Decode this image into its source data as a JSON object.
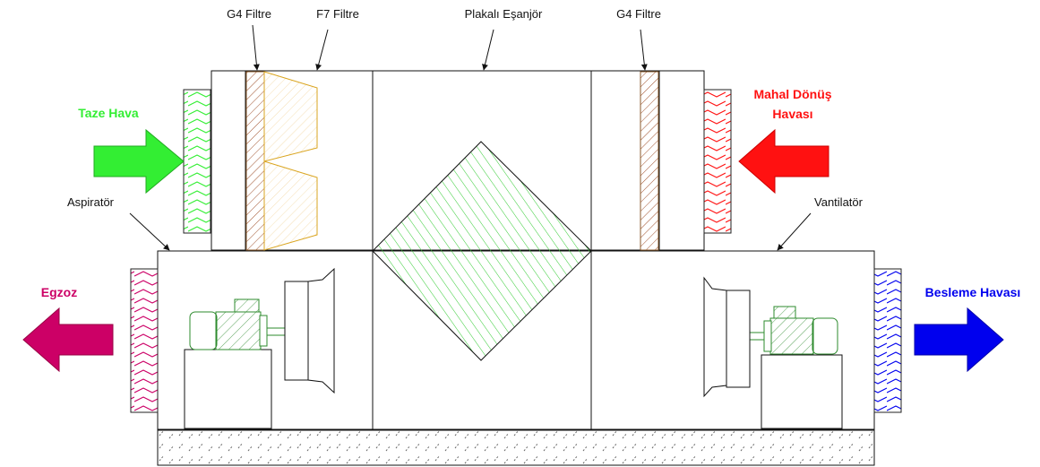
{
  "labels": {
    "g4_filter_left": "G4 Filtre",
    "f7_filter": "F7 Filtre",
    "plate_exchanger": "Plakalı Eşanjör",
    "g4_filter_right": "G4 Filtre",
    "fresh_air": "Taze Hava",
    "return_air_line1": "Mahal Dönüş",
    "return_air_line2": "Havası",
    "aspirator": "Aspiratör",
    "fan": "Vantilatör",
    "exhaust": "Egzoz",
    "supply_air": "Besleme Havası"
  },
  "colors": {
    "fresh_air": "#33ee33",
    "return_air": "#ff1111",
    "exhaust": "#cc0066",
    "supply_air": "#0000ee",
    "g4_filter": "#a0522d",
    "f7_filter": "#daa520",
    "exchanger": "#33cc33",
    "motor": "#2e8b2e",
    "base_hatch": "#555555"
  },
  "icons": {
    "arrow_in_left": "arrow-right-icon",
    "arrow_in_right": "arrow-left-icon",
    "arrow_out_left": "arrow-left-icon",
    "arrow_out_right": "arrow-right-icon"
  }
}
